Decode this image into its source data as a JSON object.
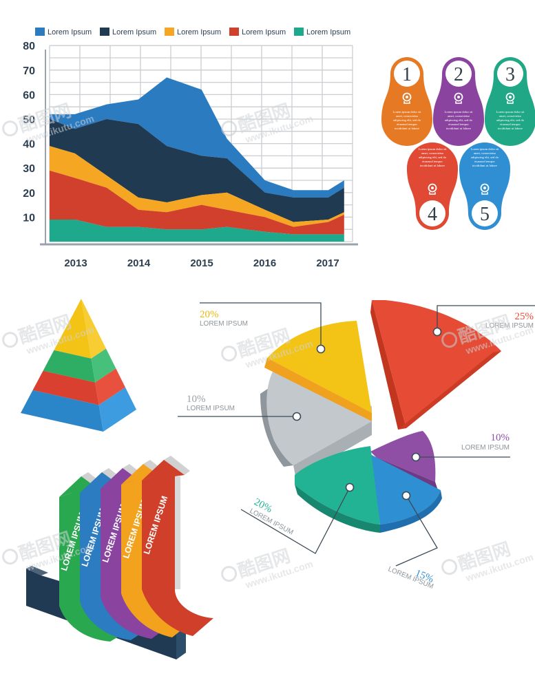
{
  "chart_data": [
    {
      "type": "area",
      "layout": "stacked",
      "x": [
        2012.6,
        2013,
        2013.5,
        2014,
        2014.45,
        2015,
        2015.4,
        2016,
        2016.45,
        2017,
        2017.25
      ],
      "categories": [
        "2013",
        "2014",
        "2015",
        "2016",
        "2017"
      ],
      "ylim": [
        0,
        80
      ],
      "yticks": [
        10,
        20,
        30,
        40,
        50,
        60,
        70,
        80
      ],
      "grid": true,
      "legend_position": "top",
      "series": [
        {
          "name": "Lorem Ipsum",
          "color": "#2b7bc1",
          "values": [
            2,
            6,
            6,
            10,
            28,
            27,
            8,
            5,
            3,
            3,
            3
          ]
        },
        {
          "name": "Lorem Ipsum",
          "color": "#203a52",
          "values": [
            11,
            10,
            23,
            30,
            23,
            16,
            14,
            7,
            10,
            9,
            10
          ]
        },
        {
          "name": "Lorem Ipsum",
          "color": "#f5a623",
          "values": [
            10,
            10,
            5,
            5,
            4,
            4,
            7,
            3,
            2,
            1,
            1
          ]
        },
        {
          "name": "Lorem Ipsum",
          "color": "#d1402d",
          "values": [
            20,
            17,
            16,
            7,
            7,
            10,
            7,
            6,
            3,
            5,
            8
          ]
        },
        {
          "name": "Lorem Ipsum",
          "color": "#1ea88c",
          "values": [
            9,
            9,
            6,
            6,
            5,
            5,
            6,
            4,
            3,
            3,
            3
          ]
        }
      ]
    },
    {
      "type": "pie",
      "slices": [
        {
          "value": "20%",
          "label": "LOREM IPSUM",
          "color": "#f3c316"
        },
        {
          "value": "25%",
          "label": "LOREM IPSUM",
          "color": "#e54b35"
        },
        {
          "value": "10%",
          "label": "LOREM IPSUM",
          "color": "#c3c8cc"
        },
        {
          "value": "10%",
          "label": "LOREM IPSUM",
          "color": "#8e4fa4"
        },
        {
          "value": "20%",
          "label": "LOREM IPSUM",
          "color": "#22b394"
        },
        {
          "value": "15%",
          "label": "LOREM IPSUM",
          "color": "#2e8fd3"
        }
      ]
    }
  ],
  "steps": [
    {
      "number": "1",
      "color": "#e67a24",
      "text": "Lorem ipsum dolor sit amet, consectetur adipiscing elit, sed do eiusmod tempor incididunt ut labore"
    },
    {
      "number": "2",
      "color": "#8a44a0",
      "text": "Lorem ipsum dolor sit amet, consectetur adipiscing elit, sed do eiusmod tempor incididunt ut labore"
    },
    {
      "number": "3",
      "color": "#1fa786",
      "text": "Lorem ipsum dolor sit amet, consectetur adipiscing elit, sed do eiusmod tempor incididunt ut labore"
    },
    {
      "number": "4",
      "color": "#e04a34",
      "text": "Lorem ipsum dolor sit amet, consectetur adipiscing elit, sed do eiusmod tempor incididunt ut labore"
    },
    {
      "number": "5",
      "color": "#2f8fd2",
      "text": "Lorem ipsum dolor sit amet, consectetur adipiscing elit, sed do eiusmod tempor incididunt ut labore"
    }
  ],
  "pyramid": {
    "colors": [
      "#f3c316",
      "#2dae64",
      "#d9402f",
      "#2b86c9"
    ]
  },
  "arrows": [
    {
      "label": "LOREM IPSUM",
      "color": "#2aa84f"
    },
    {
      "label": "LOREM IPSUM",
      "color": "#2b7cc1"
    },
    {
      "label": "LOREM IPSUM",
      "color": "#8a44a0"
    },
    {
      "label": "LOREM IPSUM",
      "color": "#f2a21c"
    },
    {
      "label": "LOREM IPSUM",
      "color": "#cf3f2a"
    }
  ],
  "watermark": {
    "brand": "酷图网",
    "url": "www.ikutu.com"
  }
}
